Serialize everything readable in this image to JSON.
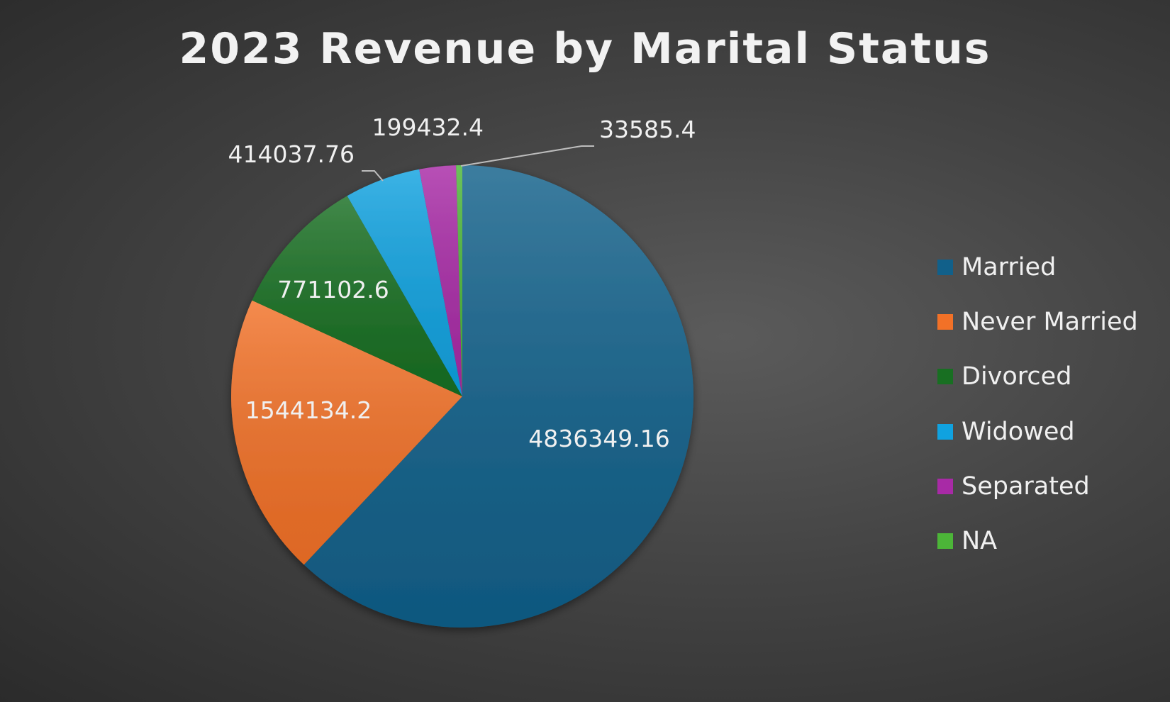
{
  "chart_data": {
    "type": "pie",
    "title": "2023 Revenue by Marital Status",
    "legend_position": "right",
    "slices": [
      {
        "name": "Married",
        "value": 4836349.16,
        "label": "4836349.16",
        "color": "#11608a"
      },
      {
        "name": "Never Married",
        "value": 1544134.2,
        "label": "1544134.2",
        "color": "#f27127"
      },
      {
        "name": "Divorced",
        "value": 771102.6,
        "label": "771102.6",
        "color": "#186f22"
      },
      {
        "name": "Widowed",
        "value": 414037.76,
        "label": "414037.76",
        "color": "#10a2e0"
      },
      {
        "name": "Separated",
        "value": 199432.4,
        "label": "199432.4",
        "color": "#a82aa6"
      },
      {
        "name": "NA",
        "value": 33585.4,
        "label": "33585.4",
        "color": "#4cb538"
      }
    ]
  }
}
